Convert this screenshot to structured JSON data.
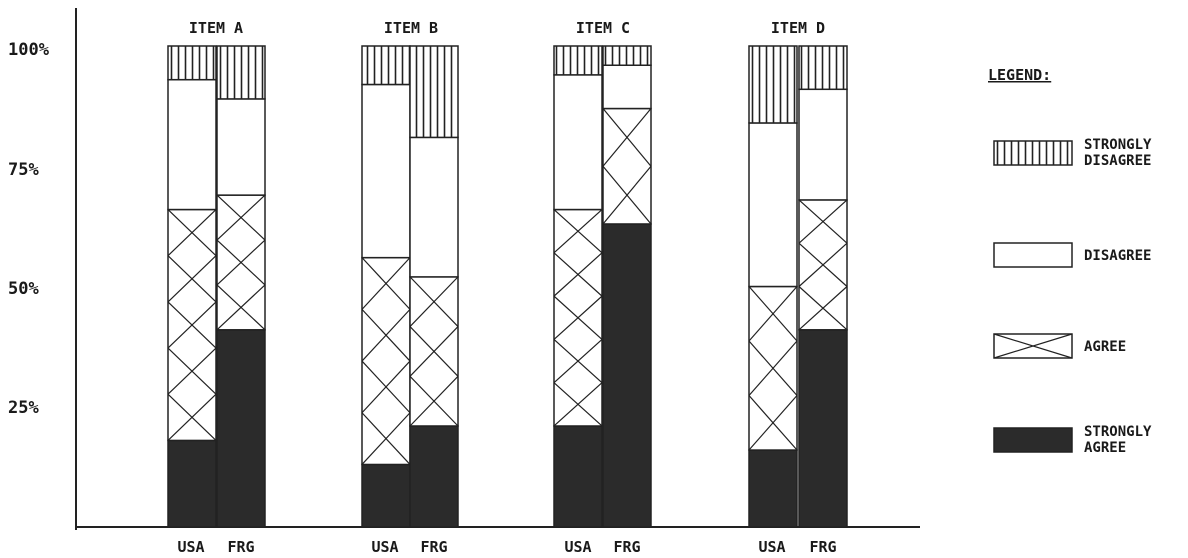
{
  "chart_data": {
    "type": "bar",
    "stacked": true,
    "percent": true,
    "groups": [
      "ITEM A",
      "ITEM B",
      "ITEM C",
      "ITEM D"
    ],
    "categories": [
      "USA",
      "FRG"
    ],
    "yticks": [
      "25%",
      "50%",
      "75%",
      "100%"
    ],
    "ylim": [
      0,
      100
    ],
    "legend_title": "LEGEND:",
    "legend_position": "right",
    "series": [
      {
        "key": "strongly_agree",
        "label_lines": [
          "STRONGLY",
          "AGREE"
        ],
        "pattern": "solid",
        "values": [
          [
            18,
            41
          ],
          [
            13,
            21
          ],
          [
            21,
            63
          ],
          [
            16,
            41
          ]
        ]
      },
      {
        "key": "agree",
        "label_lines": [
          "AGREE"
        ],
        "pattern": "cross",
        "values": [
          [
            48,
            28
          ],
          [
            43,
            31
          ],
          [
            45,
            24
          ],
          [
            34,
            27
          ]
        ]
      },
      {
        "key": "disagree",
        "label_lines": [
          "DISAGREE"
        ],
        "pattern": "blank",
        "values": [
          [
            27,
            20
          ],
          [
            36,
            29
          ],
          [
            28,
            9
          ],
          [
            34,
            23
          ]
        ]
      },
      {
        "key": "strongly_disagree",
        "label_lines": [
          "STRONGLY",
          "DISAGREE"
        ],
        "pattern": "vertical",
        "values": [
          [
            7,
            11
          ],
          [
            8,
            19
          ],
          [
            6,
            4
          ],
          [
            16,
            9
          ]
        ]
      }
    ]
  }
}
